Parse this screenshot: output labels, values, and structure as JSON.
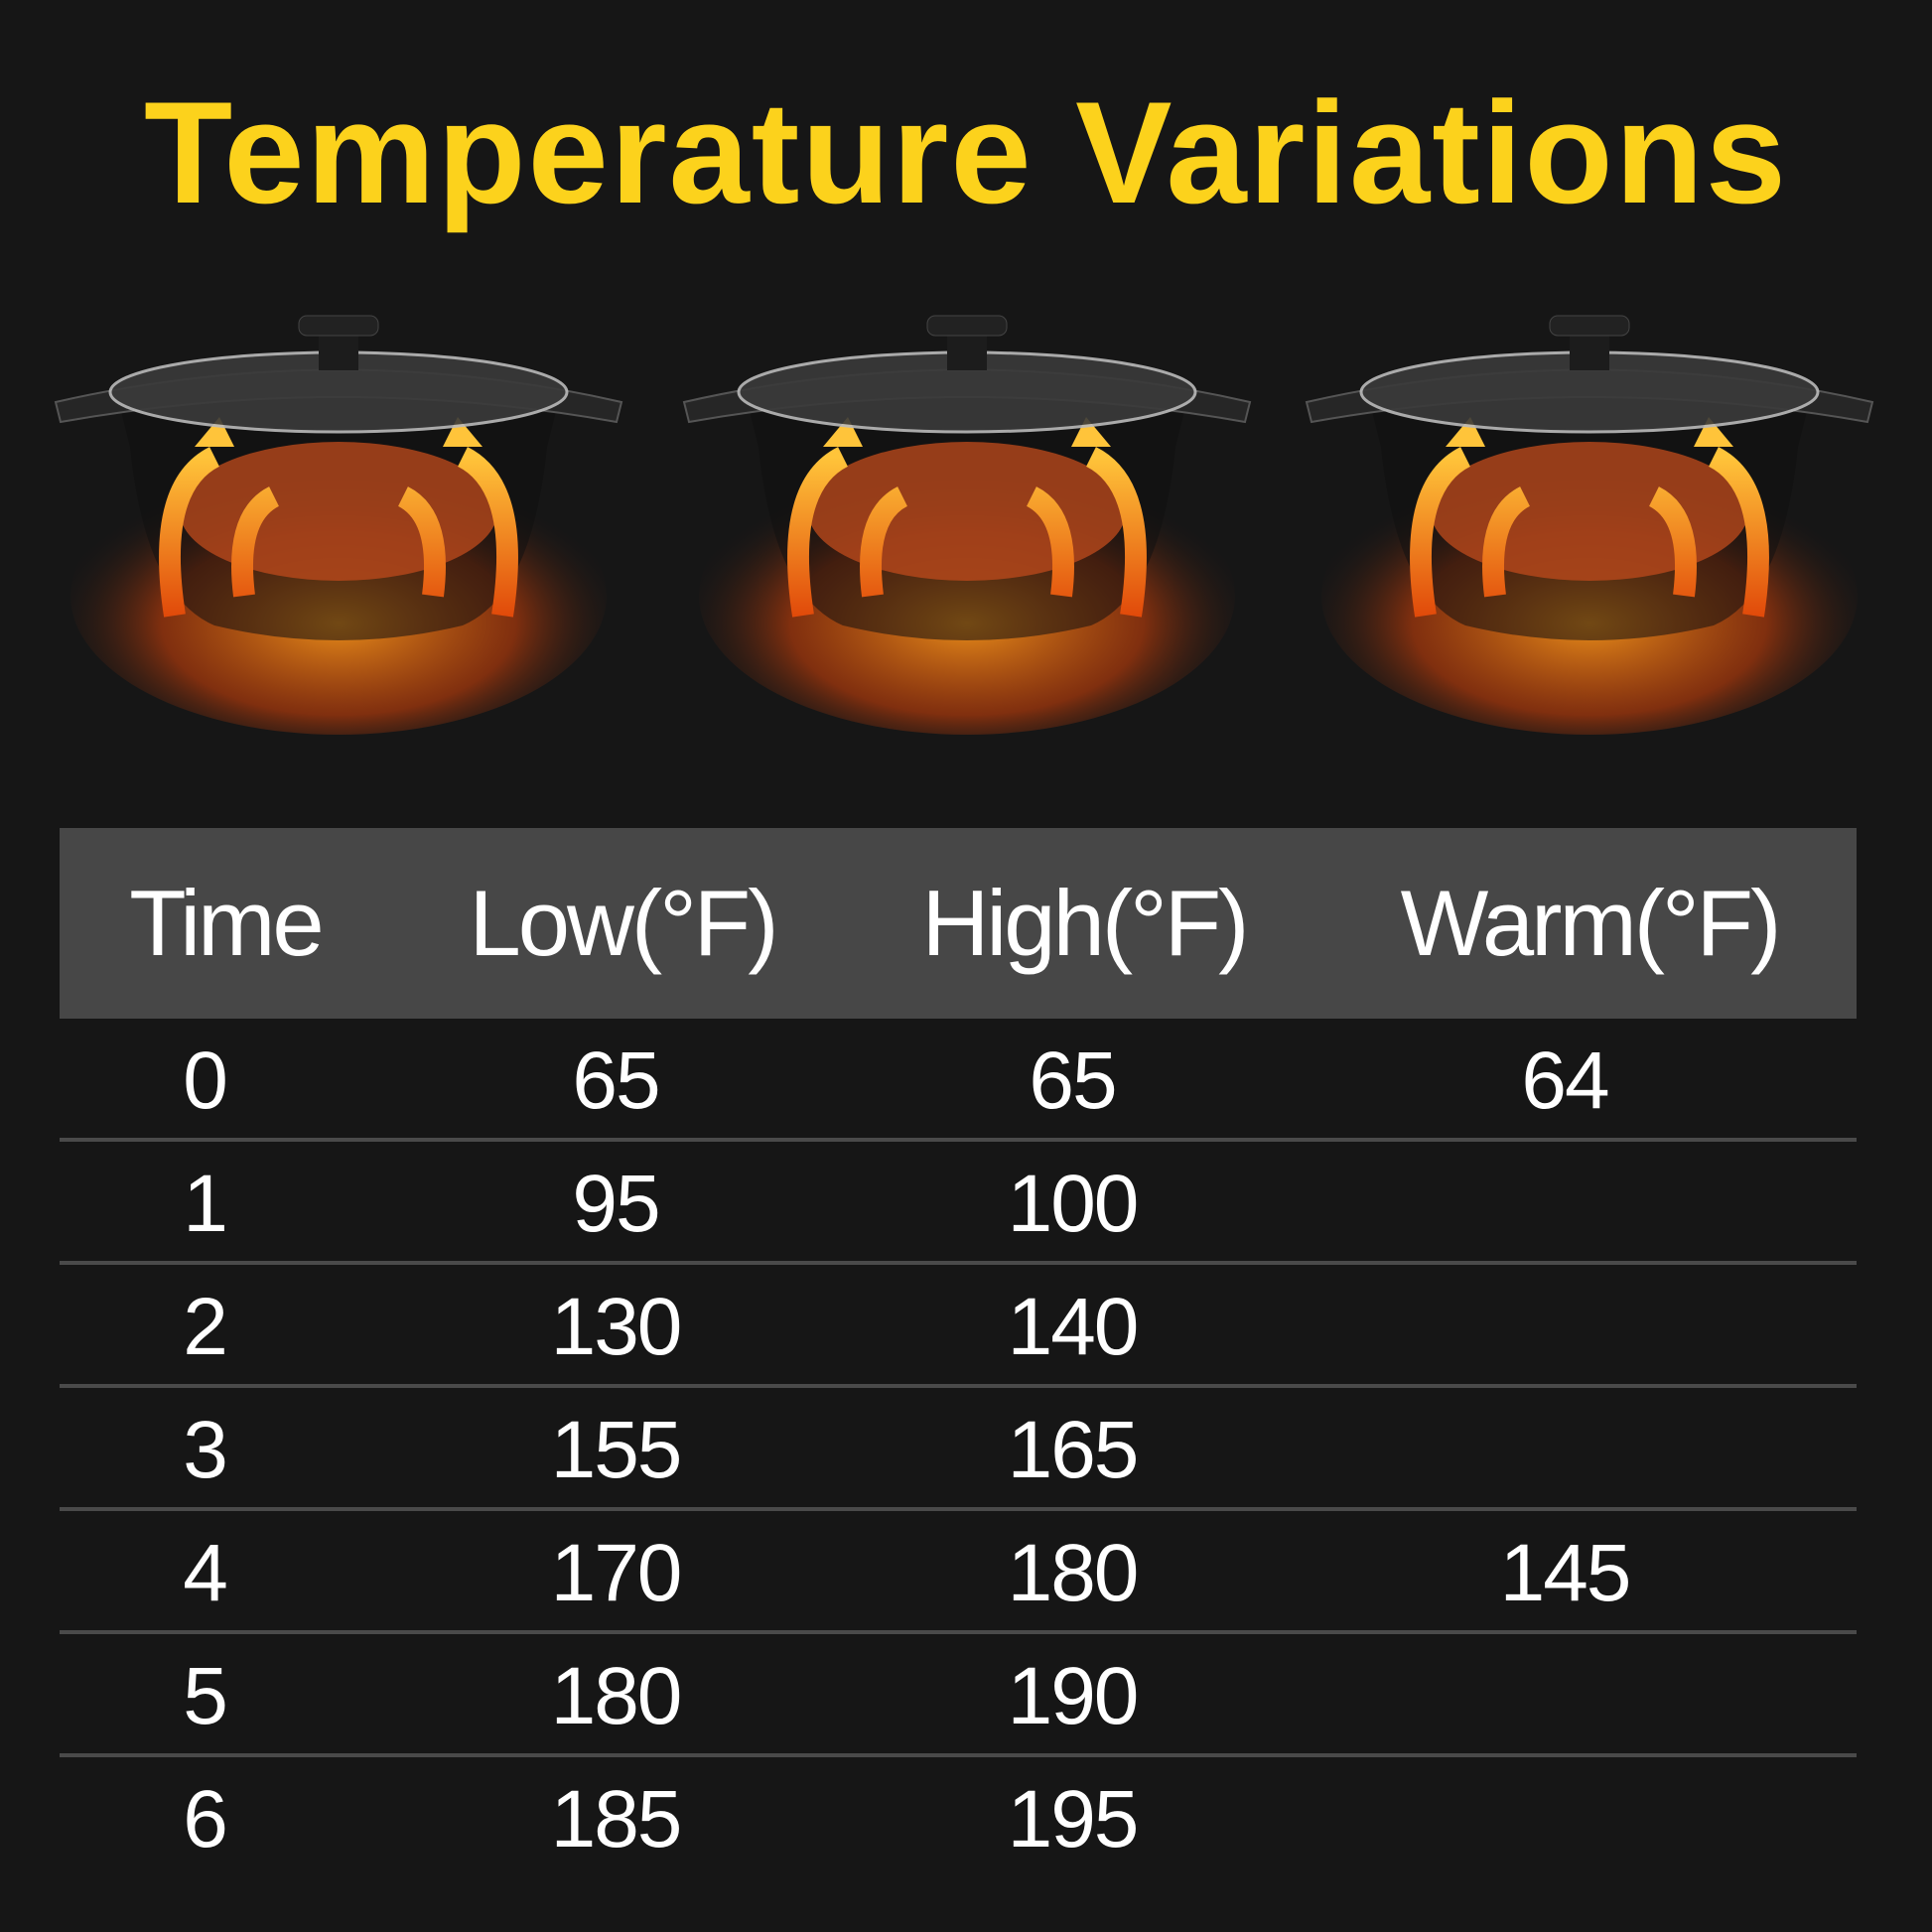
{
  "title": "Temperature Variations",
  "colors": {
    "title": "#fcd21c",
    "background": "#161616",
    "header_bg": "#474747",
    "divider": "#4a4a4a"
  },
  "illustration": {
    "count": 3,
    "subject": "slow cooker with heat arrows"
  },
  "table": {
    "headers": [
      "Time",
      "Low(°F)",
      "High(°F)",
      "Warm(°F)"
    ],
    "rows": [
      [
        "0",
        "65",
        "65",
        "64"
      ],
      [
        "1",
        "95",
        "100",
        ""
      ],
      [
        "2",
        "130",
        "140",
        ""
      ],
      [
        "3",
        "155",
        "165",
        ""
      ],
      [
        "4",
        "170",
        "180",
        "145"
      ],
      [
        "5",
        "180",
        "190",
        ""
      ],
      [
        "6",
        "185",
        "195",
        ""
      ]
    ]
  }
}
